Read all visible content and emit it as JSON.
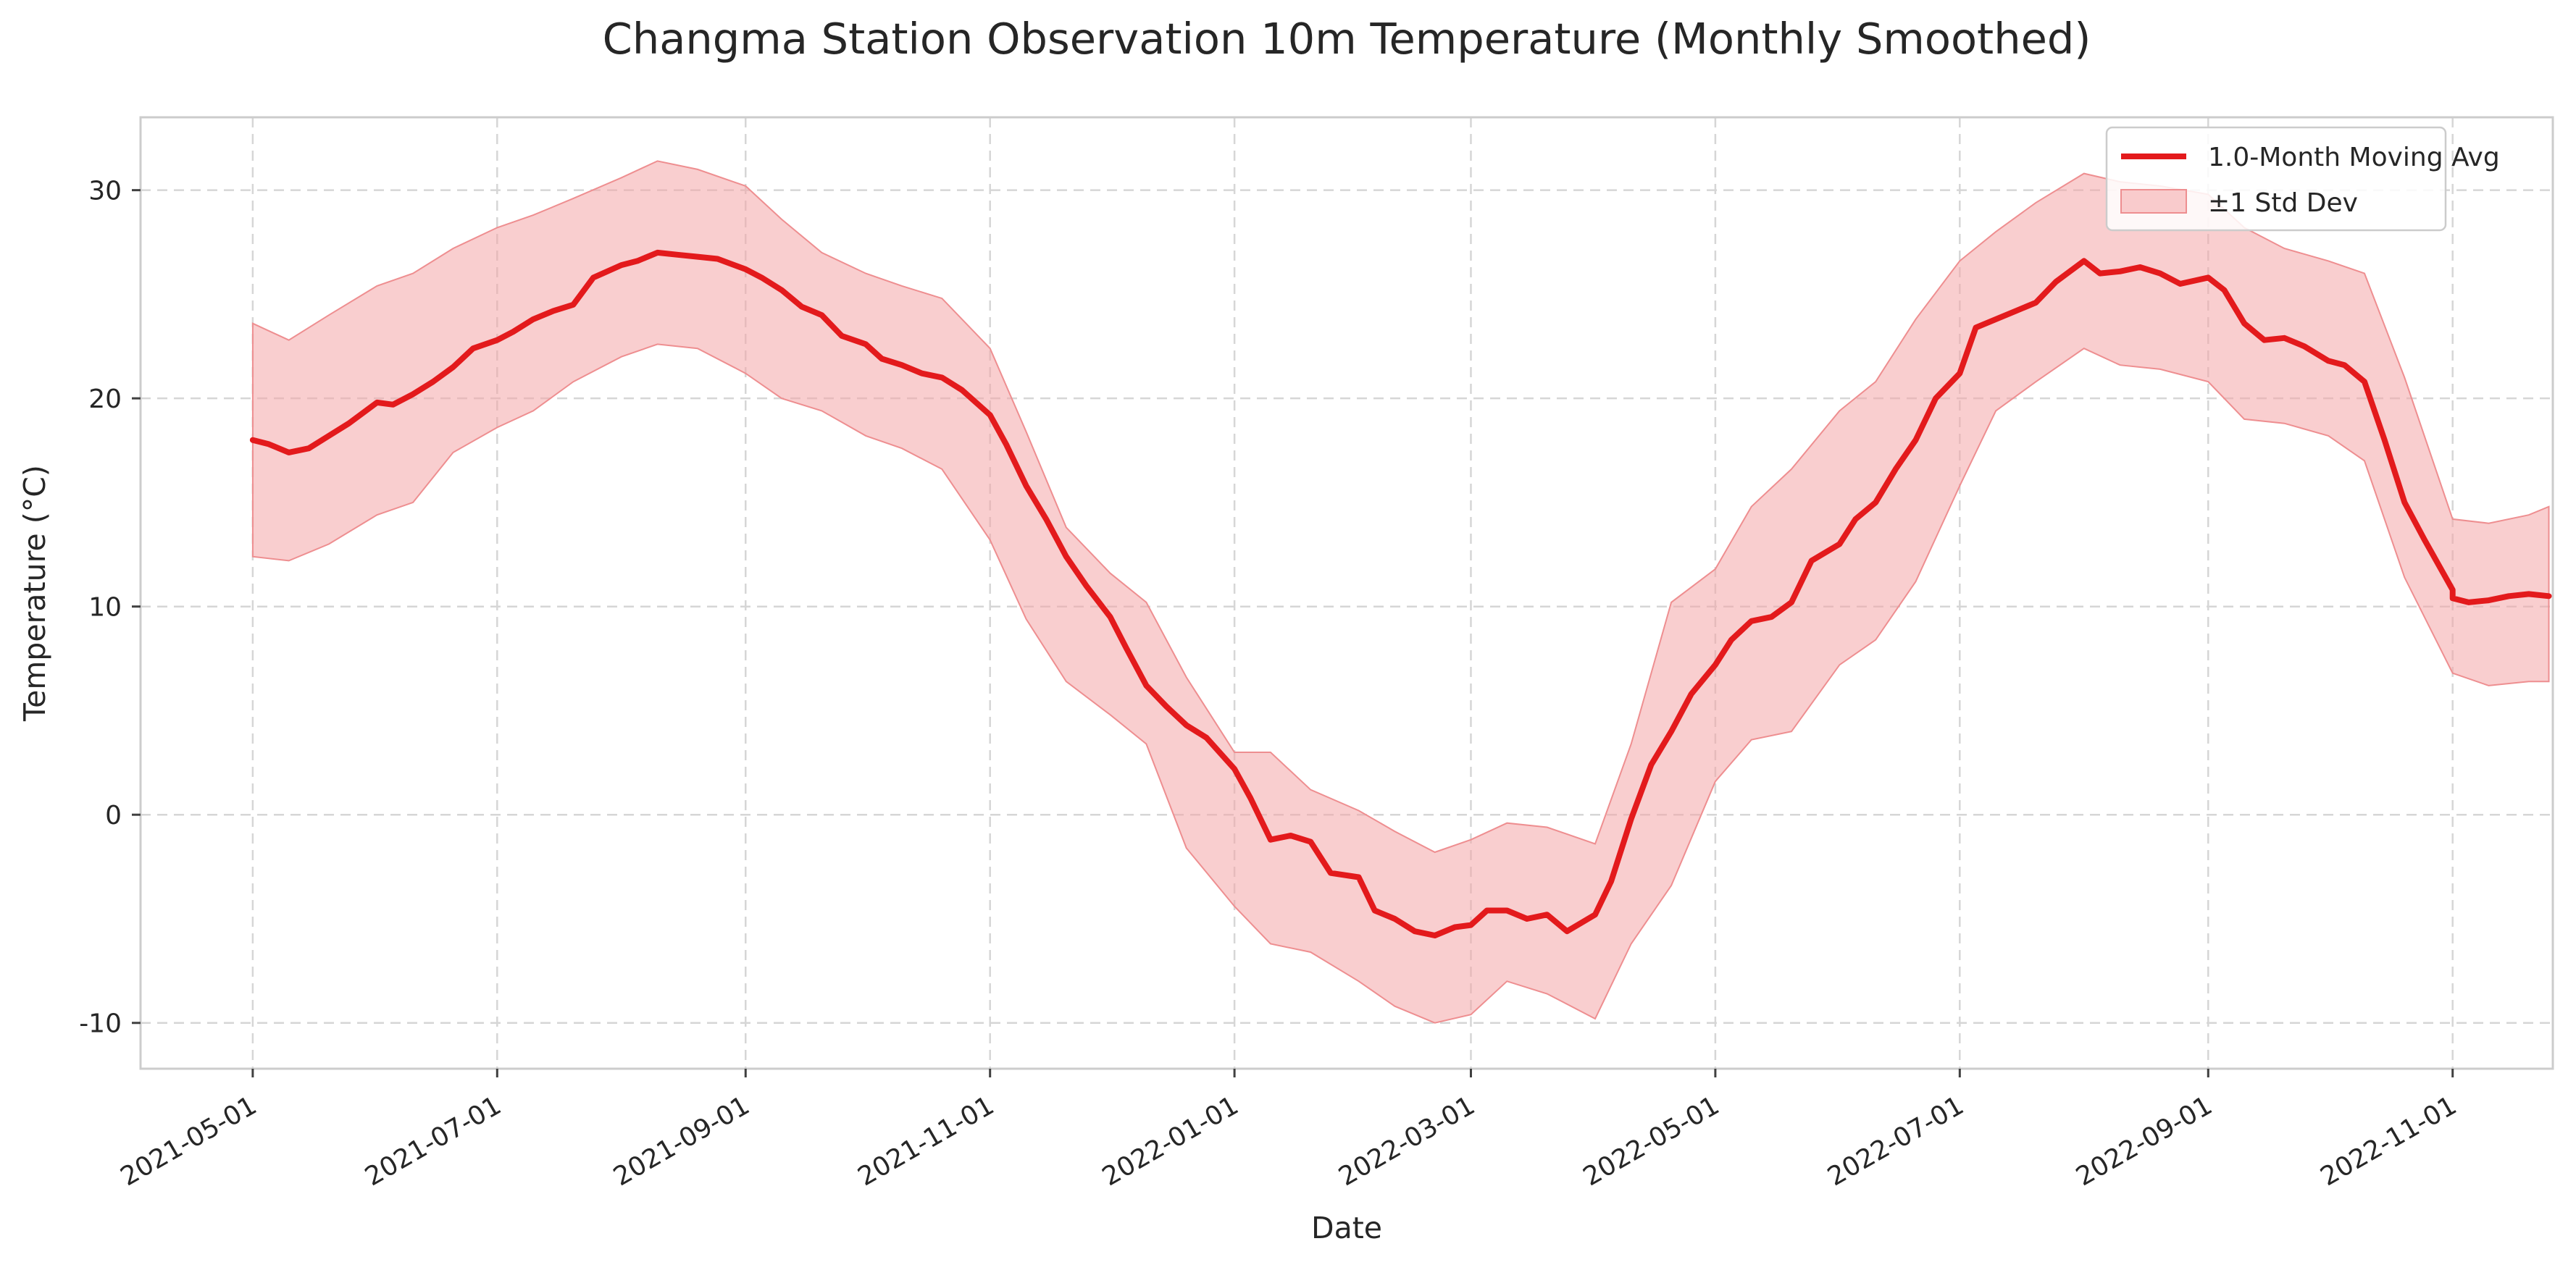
{
  "chart_data": {
    "type": "area",
    "title": "Changma Station Observation 10m Temperature (Monthly Smoothed)",
    "xlabel": "Date",
    "ylabel": "Temperature (°C)",
    "xlim": [
      "2021-04-03",
      "2022-11-26"
    ],
    "ylim": [
      -12.2,
      33.5
    ],
    "x_ticks": [
      "2021-05-01",
      "2021-07-01",
      "2021-09-01",
      "2021-11-01",
      "2022-01-01",
      "2022-03-01",
      "2022-05-01",
      "2022-07-01",
      "2022-09-01",
      "2022-11-01"
    ],
    "y_ticks": [
      -10,
      0,
      10,
      20,
      30
    ],
    "grid": true,
    "legend_position": "top-right",
    "colors": {
      "line": "#e31a1c",
      "band": "#f4a6a8"
    },
    "series": [
      {
        "name": "1.0-Month Moving Avg",
        "kind": "line",
        "points": [
          [
            "2021-05-01",
            18.0
          ],
          [
            "2021-05-05",
            17.8
          ],
          [
            "2021-05-10",
            17.4
          ],
          [
            "2021-05-15",
            17.6
          ],
          [
            "2021-05-20",
            18.2
          ],
          [
            "2021-05-25",
            18.8
          ],
          [
            "2021-06-01",
            19.8
          ],
          [
            "2021-06-05",
            19.7
          ],
          [
            "2021-06-10",
            20.2
          ],
          [
            "2021-06-15",
            20.8
          ],
          [
            "2021-06-20",
            21.5
          ],
          [
            "2021-06-25",
            22.4
          ],
          [
            "2021-07-01",
            22.8
          ],
          [
            "2021-07-05",
            23.2
          ],
          [
            "2021-07-10",
            23.8
          ],
          [
            "2021-07-15",
            24.2
          ],
          [
            "2021-07-20",
            24.5
          ],
          [
            "2021-07-25",
            25.8
          ],
          [
            "2021-08-01",
            26.4
          ],
          [
            "2021-08-05",
            26.6
          ],
          [
            "2021-08-10",
            27.0
          ],
          [
            "2021-08-15",
            26.9
          ],
          [
            "2021-08-20",
            26.8
          ],
          [
            "2021-08-25",
            26.7
          ],
          [
            "2021-09-01",
            26.2
          ],
          [
            "2021-09-05",
            25.8
          ],
          [
            "2021-09-10",
            25.2
          ],
          [
            "2021-09-15",
            24.4
          ],
          [
            "2021-09-20",
            24.0
          ],
          [
            "2021-09-25",
            23.0
          ],
          [
            "2021-10-01",
            22.6
          ],
          [
            "2021-10-05",
            21.9
          ],
          [
            "2021-10-10",
            21.6
          ],
          [
            "2021-10-15",
            21.2
          ],
          [
            "2021-10-20",
            21.0
          ],
          [
            "2021-10-25",
            20.4
          ],
          [
            "2021-11-01",
            19.2
          ],
          [
            "2021-11-05",
            17.8
          ],
          [
            "2021-11-10",
            15.8
          ],
          [
            "2021-11-15",
            14.2
          ],
          [
            "2021-11-20",
            12.4
          ],
          [
            "2021-11-25",
            11.0
          ],
          [
            "2021-12-01",
            9.5
          ],
          [
            "2021-12-05",
            8.0
          ],
          [
            "2021-12-10",
            6.2
          ],
          [
            "2021-12-15",
            5.2
          ],
          [
            "2021-12-20",
            4.3
          ],
          [
            "2021-12-25",
            3.7
          ],
          [
            "2022-01-01",
            2.2
          ],
          [
            "2022-01-05",
            0.8
          ],
          [
            "2022-01-10",
            -1.2
          ],
          [
            "2022-01-15",
            -1.0
          ],
          [
            "2022-01-20",
            -1.3
          ],
          [
            "2022-01-25",
            -2.8
          ],
          [
            "2022-02-01",
            -3.0
          ],
          [
            "2022-02-05",
            -4.6
          ],
          [
            "2022-02-10",
            -5.0
          ],
          [
            "2022-02-15",
            -5.6
          ],
          [
            "2022-02-20",
            -5.8
          ],
          [
            "2022-02-25",
            -5.4
          ],
          [
            "2022-03-01",
            -5.3
          ],
          [
            "2022-03-05",
            -4.6
          ],
          [
            "2022-03-10",
            -4.6
          ],
          [
            "2022-03-15",
            -5.0
          ],
          [
            "2022-03-20",
            -4.8
          ],
          [
            "2022-03-25",
            -5.6
          ],
          [
            "2022-04-01",
            -4.8
          ],
          [
            "2022-04-05",
            -3.2
          ],
          [
            "2022-04-10",
            -0.2
          ],
          [
            "2022-04-15",
            2.4
          ],
          [
            "2022-04-20",
            4.0
          ],
          [
            "2022-04-25",
            5.8
          ],
          [
            "2022-05-01",
            7.2
          ],
          [
            "2022-05-05",
            8.4
          ],
          [
            "2022-05-10",
            9.3
          ],
          [
            "2022-05-15",
            9.5
          ],
          [
            "2022-05-20",
            10.2
          ],
          [
            "2022-05-25",
            12.2
          ],
          [
            "2022-06-01",
            13.0
          ],
          [
            "2022-06-05",
            14.2
          ],
          [
            "2022-06-10",
            15.0
          ],
          [
            "2022-06-15",
            16.6
          ],
          [
            "2022-06-20",
            18.0
          ],
          [
            "2022-06-25",
            20.0
          ],
          [
            "2022-07-01",
            21.2
          ],
          [
            "2022-07-05",
            23.4
          ],
          [
            "2022-07-10",
            23.8
          ],
          [
            "2022-07-15",
            24.2
          ],
          [
            "2022-07-20",
            24.6
          ],
          [
            "2022-07-25",
            25.6
          ],
          [
            "2022-08-01",
            26.6
          ],
          [
            "2022-08-05",
            26.0
          ],
          [
            "2022-08-10",
            26.1
          ],
          [
            "2022-08-15",
            26.3
          ],
          [
            "2022-08-20",
            26.0
          ],
          [
            "2022-08-25",
            25.5
          ],
          [
            "2022-09-01",
            25.8
          ],
          [
            "2022-09-05",
            25.2
          ],
          [
            "2022-09-10",
            23.6
          ],
          [
            "2022-09-15",
            22.8
          ],
          [
            "2022-09-20",
            22.9
          ],
          [
            "2022-09-25",
            22.5
          ],
          [
            "2022-10-01",
            21.8
          ],
          [
            "2022-10-05",
            21.6
          ],
          [
            "2022-10-10",
            20.8
          ],
          [
            "2022-10-15",
            18.0
          ],
          [
            "2022-10-20",
            15.0
          ],
          [
            "2022-10-25",
            13.2
          ],
          [
            "2022-11-01",
            10.8
          ],
          [
            "2022-11-05",
            10.2
          ],
          [
            "2022-11-10",
            10.3
          ],
          [
            "2022-11-15",
            10.5
          ],
          [
            "2022-11-20",
            10.6
          ],
          [
            "2022-11-25",
            10.5
          ],
          [
            "2022-11-01",
            10.4
          ]
        ]
      },
      {
        "name": "±1 Std Dev",
        "kind": "band",
        "points": [
          [
            "2021-05-01",
            12.4,
            23.6
          ],
          [
            "2021-05-10",
            12.2,
            22.8
          ],
          [
            "2021-05-20",
            13.0,
            24.0
          ],
          [
            "2021-06-01",
            14.4,
            25.4
          ],
          [
            "2021-06-10",
            15.0,
            26.0
          ],
          [
            "2021-06-20",
            17.4,
            27.2
          ],
          [
            "2021-07-01",
            18.6,
            28.2
          ],
          [
            "2021-07-10",
            19.4,
            28.8
          ],
          [
            "2021-07-20",
            20.8,
            29.6
          ],
          [
            "2021-08-01",
            22.0,
            30.6
          ],
          [
            "2021-08-10",
            22.6,
            31.4
          ],
          [
            "2021-08-20",
            22.4,
            31.0
          ],
          [
            "2021-09-01",
            21.2,
            30.2
          ],
          [
            "2021-09-10",
            20.0,
            28.6
          ],
          [
            "2021-09-20",
            19.4,
            27.0
          ],
          [
            "2021-10-01",
            18.2,
            26.0
          ],
          [
            "2021-10-10",
            17.6,
            25.4
          ],
          [
            "2021-10-20",
            16.6,
            24.8
          ],
          [
            "2021-11-01",
            13.2,
            22.4
          ],
          [
            "2021-11-10",
            9.4,
            18.4
          ],
          [
            "2021-11-20",
            6.4,
            13.8
          ],
          [
            "2021-12-01",
            4.8,
            11.6
          ],
          [
            "2021-12-10",
            3.4,
            10.2
          ],
          [
            "2021-12-20",
            -1.6,
            6.6
          ],
          [
            "2022-01-01",
            -4.4,
            3.0
          ],
          [
            "2022-01-10",
            -6.2,
            3.0
          ],
          [
            "2022-01-20",
            -6.6,
            1.2
          ],
          [
            "2022-02-01",
            -8.0,
            0.2
          ],
          [
            "2022-02-10",
            -9.2,
            -0.8
          ],
          [
            "2022-02-20",
            -10.0,
            -1.8
          ],
          [
            "2022-03-01",
            -9.6,
            -1.2
          ],
          [
            "2022-03-10",
            -8.0,
            -0.4
          ],
          [
            "2022-03-20",
            -8.6,
            -0.6
          ],
          [
            "2022-04-01",
            -9.8,
            -1.4
          ],
          [
            "2022-04-10",
            -6.2,
            3.4
          ],
          [
            "2022-04-20",
            -3.4,
            10.2
          ],
          [
            "2022-05-01",
            1.6,
            11.8
          ],
          [
            "2022-05-10",
            3.6,
            14.8
          ],
          [
            "2022-05-20",
            4.0,
            16.6
          ],
          [
            "2022-06-01",
            7.2,
            19.4
          ],
          [
            "2022-06-10",
            8.4,
            20.8
          ],
          [
            "2022-06-20",
            11.2,
            23.8
          ],
          [
            "2022-07-01",
            15.8,
            26.6
          ],
          [
            "2022-07-10",
            19.4,
            28.0
          ],
          [
            "2022-07-20",
            20.8,
            29.4
          ],
          [
            "2022-08-01",
            22.4,
            30.8
          ],
          [
            "2022-08-10",
            21.6,
            30.4
          ],
          [
            "2022-08-20",
            21.4,
            30.2
          ],
          [
            "2022-09-01",
            20.8,
            29.8
          ],
          [
            "2022-09-10",
            19.0,
            28.2
          ],
          [
            "2022-09-20",
            18.8,
            27.2
          ],
          [
            "2022-10-01",
            18.2,
            26.6
          ],
          [
            "2022-10-10",
            17.0,
            26.0
          ],
          [
            "2022-10-20",
            11.4,
            21.0
          ],
          [
            "2022-11-01",
            6.8,
            14.2
          ],
          [
            "2022-11-10",
            6.2,
            14.0
          ],
          [
            "2022-11-20",
            6.4,
            14.4
          ],
          [
            "2022-11-25",
            6.4,
            14.8
          ]
        ]
      }
    ]
  }
}
